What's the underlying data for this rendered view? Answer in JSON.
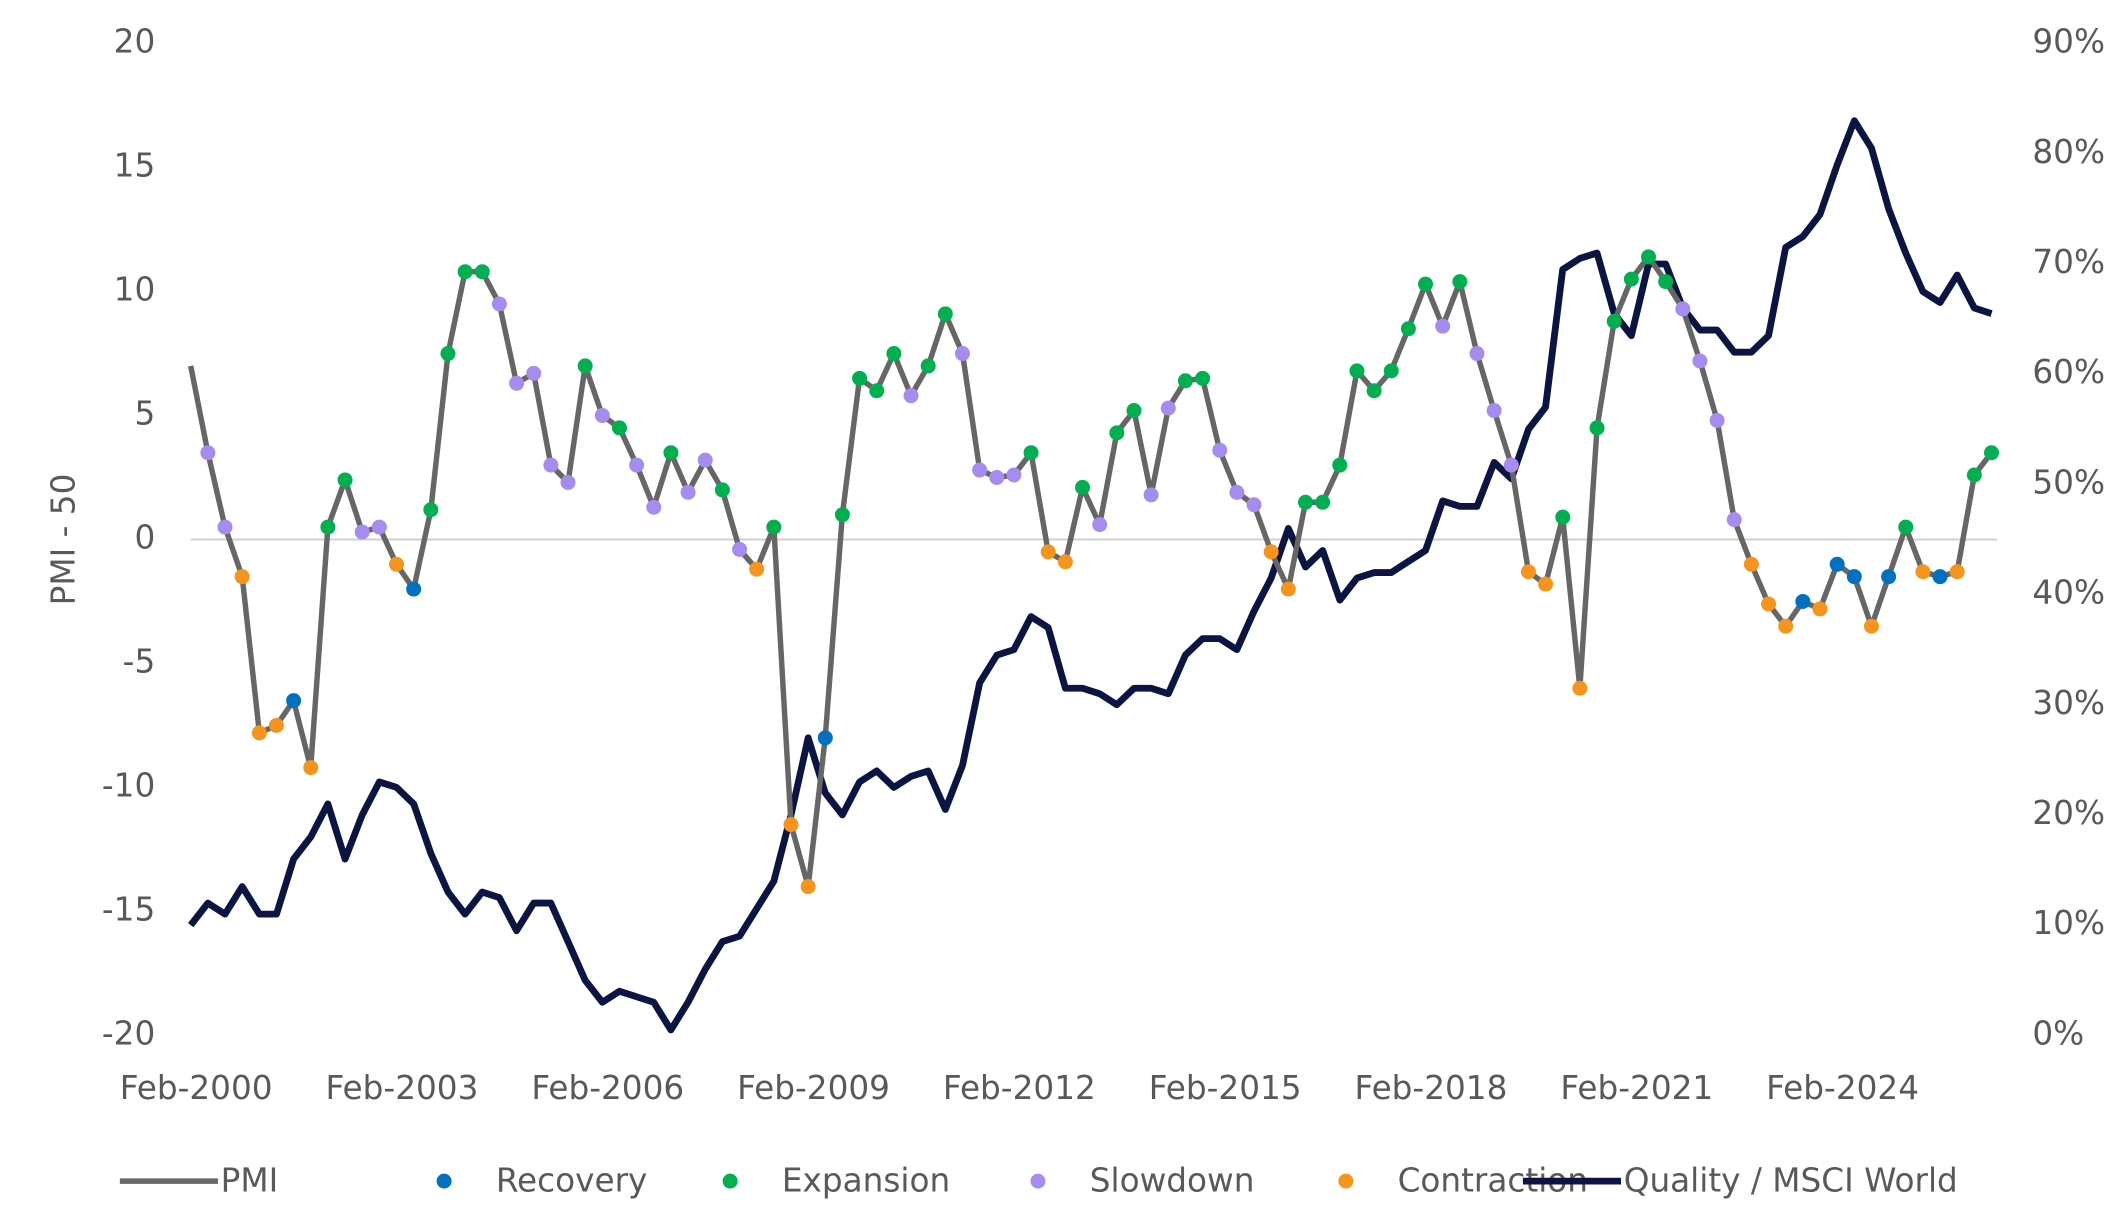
{
  "chart_data": {
    "type": "line",
    "y_label": "PMI - 50",
    "categories": [
      "Feb-2000",
      null,
      null,
      null,
      null,
      null,
      null,
      null,
      null,
      null,
      null,
      null,
      "Feb-2003",
      null,
      null,
      null,
      null,
      null,
      null,
      null,
      null,
      null,
      null,
      null,
      "Feb-2006",
      null,
      null,
      null,
      null,
      null,
      null,
      null,
      null,
      null,
      null,
      null,
      "Feb-2009",
      null,
      null,
      null,
      null,
      null,
      null,
      null,
      null,
      null,
      null,
      null,
      "Feb-2012",
      null,
      null,
      null,
      null,
      null,
      null,
      null,
      null,
      null,
      null,
      null,
      "Feb-2015",
      null,
      null,
      null,
      null,
      null,
      null,
      null,
      null,
      null,
      null,
      null,
      "Feb-2018",
      null,
      null,
      null,
      null,
      null,
      null,
      null,
      null,
      null,
      null,
      null,
      "Feb-2021",
      null,
      null,
      null,
      null,
      null,
      null,
      null,
      null,
      null,
      null,
      null,
      "Feb-2024",
      null,
      null,
      null,
      null,
      null,
      null,
      null,
      null,
      null
    ],
    "ylim": [
      -20,
      20
    ],
    "yticks": [
      -20,
      -15,
      -10,
      -5,
      0,
      5,
      10,
      15,
      20
    ],
    "y2lim": [
      0,
      90
    ],
    "y2ticks": [
      {
        "value": 0,
        "label": "0%"
      },
      {
        "value": 10,
        "label": "10%"
      },
      {
        "value": 20,
        "label": "20%"
      },
      {
        "value": 30,
        "label": "30%"
      },
      {
        "value": 40,
        "label": "40%"
      },
      {
        "value": 50,
        "label": "50%"
      },
      {
        "value": 60,
        "label": "60%"
      },
      {
        "value": 70,
        "label": "70%"
      },
      {
        "value": 80,
        "label": "80%"
      },
      {
        "value": 90,
        "label": "90%"
      }
    ],
    "legend": "bottom",
    "series": [
      {
        "name": "PMI",
        "color": "#666666",
        "mode": "line",
        "values": [
          7,
          3.5,
          0.5,
          -1.5,
          -7.8,
          -7.5,
          -6.5,
          -9.2,
          0.5,
          2.4,
          0.3,
          0.5,
          -1,
          -2,
          1.2,
          7.5,
          10.8,
          10.8,
          9.5,
          6.3,
          6.7,
          3,
          2.3,
          7,
          5,
          4.5,
          3,
          1.3,
          3.5,
          1.9,
          3.2,
          2,
          -0.4,
          -1.2,
          0.5,
          -11.5,
          -14,
          -8,
          1,
          6.5,
          6,
          7.5,
          5.8,
          7,
          9.1,
          7.5,
          2.8,
          2.5,
          2.6,
          3.5,
          -0.5,
          -0.9,
          2.1,
          0.6,
          4.3,
          5.2,
          1.8,
          5.3,
          6.4,
          6.5,
          3.6,
          1.9,
          1.4,
          -0.5,
          -2,
          1.5,
          1.5,
          3,
          6.8,
          6,
          6.8,
          8.5,
          10.3,
          8.6,
          10.4,
          7.5,
          5.2,
          3,
          -1.3,
          -1.8,
          0.9,
          -6,
          4.5,
          8.8,
          10.5,
          11.4,
          10.4,
          9.3,
          7.2,
          4.8,
          0.8,
          -1,
          -2.6,
          -3.5,
          -2.5,
          -2.8,
          -1,
          -1.5,
          -3.5,
          -1.5,
          0.5,
          -1.3,
          -1.5,
          -1.3,
          2.6,
          3.5
        ]
      },
      {
        "name": "Recovery",
        "color": "#0070c0",
        "mode": "markers",
        "values": [
          null,
          null,
          null,
          null,
          null,
          null,
          -6.5,
          null,
          null,
          null,
          null,
          null,
          null,
          -2,
          null,
          null,
          null,
          null,
          null,
          null,
          null,
          null,
          null,
          null,
          null,
          null,
          null,
          null,
          null,
          null,
          null,
          null,
          null,
          null,
          null,
          null,
          null,
          -8,
          null,
          null,
          null,
          null,
          null,
          null,
          null,
          null,
          null,
          null,
          null,
          null,
          null,
          null,
          null,
          null,
          null,
          null,
          null,
          null,
          null,
          null,
          null,
          null,
          null,
          null,
          null,
          null,
          null,
          null,
          null,
          null,
          null,
          null,
          null,
          null,
          null,
          null,
          null,
          null,
          null,
          null,
          null,
          null,
          null,
          null,
          null,
          null,
          null,
          null,
          null,
          null,
          null,
          null,
          null,
          null,
          -2.5,
          null,
          -1,
          -1.5,
          null,
          -1.5,
          null,
          null,
          -1.5,
          null,
          null,
          null
        ]
      },
      {
        "name": "Expansion",
        "color": "#00b050",
        "mode": "markers",
        "values": [
          null,
          null,
          null,
          null,
          null,
          null,
          null,
          null,
          0.5,
          2.4,
          null,
          null,
          null,
          null,
          1.2,
          7.5,
          10.8,
          10.8,
          null,
          null,
          null,
          null,
          null,
          7,
          null,
          4.5,
          null,
          null,
          3.5,
          null,
          null,
          2,
          null,
          null,
          0.5,
          null,
          null,
          null,
          1,
          6.5,
          6,
          7.5,
          null,
          7,
          9.1,
          null,
          null,
          null,
          null,
          3.5,
          null,
          null,
          2.1,
          null,
          4.3,
          5.2,
          null,
          null,
          6.4,
          6.5,
          null,
          null,
          null,
          null,
          null,
          1.5,
          1.5,
          3,
          6.8,
          6,
          6.8,
          8.5,
          10.3,
          null,
          10.4,
          null,
          null,
          null,
          null,
          null,
          0.9,
          null,
          4.5,
          8.8,
          10.5,
          11.4,
          10.4,
          null,
          null,
          null,
          null,
          null,
          null,
          null,
          null,
          null,
          null,
          null,
          null,
          null,
          0.5,
          null,
          null,
          null,
          2.6,
          3.5
        ]
      },
      {
        "name": "Slowdown",
        "color": "#a68bf0",
        "mode": "markers",
        "values": [
          null,
          3.5,
          0.5,
          null,
          null,
          null,
          null,
          null,
          null,
          null,
          0.3,
          0.5,
          null,
          null,
          null,
          null,
          null,
          null,
          9.5,
          6.3,
          6.7,
          3,
          2.3,
          null,
          5,
          null,
          3,
          1.3,
          null,
          1.9,
          3.2,
          null,
          -0.4,
          null,
          null,
          null,
          null,
          null,
          null,
          null,
          null,
          null,
          5.8,
          null,
          null,
          7.5,
          2.8,
          2.5,
          2.6,
          null,
          null,
          null,
          null,
          0.6,
          null,
          null,
          1.8,
          5.3,
          null,
          null,
          3.6,
          1.9,
          1.4,
          null,
          null,
          null,
          null,
          null,
          null,
          null,
          null,
          null,
          null,
          8.6,
          null,
          7.5,
          5.2,
          3,
          null,
          null,
          null,
          null,
          null,
          null,
          null,
          null,
          null,
          9.3,
          7.2,
          4.8,
          0.8,
          null,
          null,
          null,
          null,
          null,
          null,
          null,
          null,
          null,
          null,
          null,
          null,
          null,
          null,
          null
        ]
      },
      {
        "name": "Contraction",
        "color": "#f7941d",
        "mode": "markers",
        "values": [
          null,
          null,
          null,
          -1.5,
          -7.8,
          -7.5,
          null,
          -9.2,
          null,
          null,
          null,
          null,
          -1,
          null,
          null,
          null,
          null,
          null,
          null,
          null,
          null,
          null,
          null,
          null,
          null,
          null,
          null,
          null,
          null,
          null,
          null,
          null,
          null,
          -1.2,
          null,
          -11.5,
          -14,
          null,
          null,
          null,
          null,
          null,
          null,
          null,
          null,
          null,
          null,
          null,
          null,
          null,
          -0.5,
          -0.9,
          null,
          null,
          null,
          null,
          null,
          null,
          null,
          null,
          null,
          null,
          null,
          -0.5,
          -2,
          null,
          null,
          null,
          null,
          null,
          null,
          null,
          null,
          null,
          null,
          null,
          null,
          null,
          -1.3,
          -1.8,
          null,
          -6,
          null,
          null,
          null,
          null,
          null,
          null,
          null,
          null,
          null,
          -1,
          -2.6,
          -3.5,
          null,
          -2.8,
          null,
          null,
          -3.5,
          null,
          null,
          -1.3,
          null,
          -1.3,
          null,
          null
        ]
      },
      {
        "name": "Quality / MSCI World",
        "color": "#0b1442",
        "mode": "line",
        "axis": "y2",
        "values": [
          10,
          12,
          11,
          13.5,
          11,
          11,
          16,
          18,
          21,
          16,
          20,
          23,
          22.5,
          21,
          16.5,
          13,
          11,
          13,
          12.5,
          9.5,
          12,
          12,
          8.5,
          5,
          3,
          4,
          3.5,
          3,
          0.5,
          3,
          6,
          8.5,
          9,
          11.5,
          14,
          20,
          27,
          22,
          20,
          23,
          24,
          22.5,
          23.5,
          24,
          20.5,
          24.5,
          32,
          34.5,
          35,
          38,
          37,
          31.5,
          31.5,
          31,
          30,
          31.5,
          31.5,
          31,
          34.5,
          36,
          36,
          35,
          38.5,
          41.5,
          46,
          42.5,
          44,
          39.5,
          41.5,
          42,
          42,
          43,
          44,
          48.5,
          48,
          48,
          52,
          50.5,
          55,
          57,
          69.5,
          70.5,
          71,
          65.5,
          63.5,
          70,
          70,
          66,
          64,
          64,
          62,
          62,
          63.5,
          71.5,
          72.5,
          74.5,
          79,
          83,
          80.5,
          75,
          71,
          67.5,
          66.5,
          69,
          66,
          65.5
        ]
      }
    ]
  }
}
